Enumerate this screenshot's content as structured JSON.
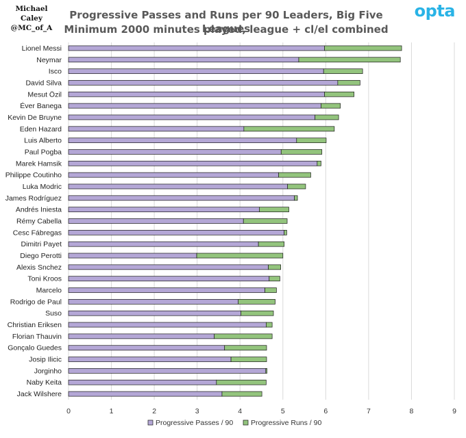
{
  "author": {
    "name": "Michael Caley",
    "handle": "@MC_of_A"
  },
  "logo": "opta",
  "colors": {
    "passes": "#b4a7d6",
    "runs": "#93c47d",
    "outline": "#1a1a1a",
    "grid": "#d9d9d9"
  },
  "chart_data": {
    "type": "bar",
    "orientation": "horizontal",
    "stacked": true,
    "title": "Progressive Passes and Runs per 90 Leaders, Big Five Leagues",
    "subtitle": "Minimum 2000 minutes played, league + cl/el combined",
    "xlim": [
      0,
      9
    ],
    "xticks": [
      "0",
      "1",
      "2",
      "3",
      "4",
      "5",
      "6",
      "7",
      "8",
      "9"
    ],
    "grid": "vertical",
    "legend_position": "bottom",
    "categories": [
      "Lionel Messi",
      "Neymar",
      "Isco",
      "David Silva",
      "Mesut Özil",
      "Éver Banega",
      "Kevin De Bruyne",
      "Eden Hazard",
      "Luis Alberto",
      "Paul Pogba",
      "Marek Hamsik",
      "Philippe Coutinho",
      "Luka Modric",
      "James Rodríguez",
      "Andrés Iniesta",
      "Rémy Cabella",
      "Cesc Fábregas",
      "Dimitri Payet",
      "Diego Perotti",
      "Alexis Snchez",
      "Toni Kroos",
      "Marcelo",
      "Rodrigo de Paul",
      "Suso",
      "Christian Eriksen",
      "Florian Thauvin",
      "Gonçalo Guedes",
      "Josip Ilicic",
      "Jorginho",
      "Naby Keita",
      "Jack Wilshere"
    ],
    "series": [
      {
        "name": "Progressive Passes / 90",
        "values": [
          5.97,
          5.37,
          5.95,
          6.28,
          5.97,
          5.89,
          5.75,
          4.09,
          5.32,
          4.96,
          5.8,
          4.9,
          5.11,
          5.27,
          4.45,
          4.08,
          5.03,
          4.43,
          2.99,
          4.66,
          4.68,
          4.58,
          3.96,
          4.02,
          4.61,
          3.4,
          3.64,
          3.79,
          4.6,
          3.45,
          3.58
        ]
      },
      {
        "name": "Progressive Runs / 90",
        "values": [
          1.8,
          2.37,
          0.91,
          0.52,
          0.69,
          0.45,
          0.55,
          2.11,
          0.69,
          0.95,
          0.09,
          0.75,
          0.42,
          0.07,
          0.69,
          1.02,
          0.06,
          0.6,
          2.01,
          0.29,
          0.25,
          0.27,
          0.86,
          0.76,
          0.14,
          1.35,
          0.98,
          0.83,
          0.03,
          1.16,
          0.93
        ]
      }
    ]
  }
}
